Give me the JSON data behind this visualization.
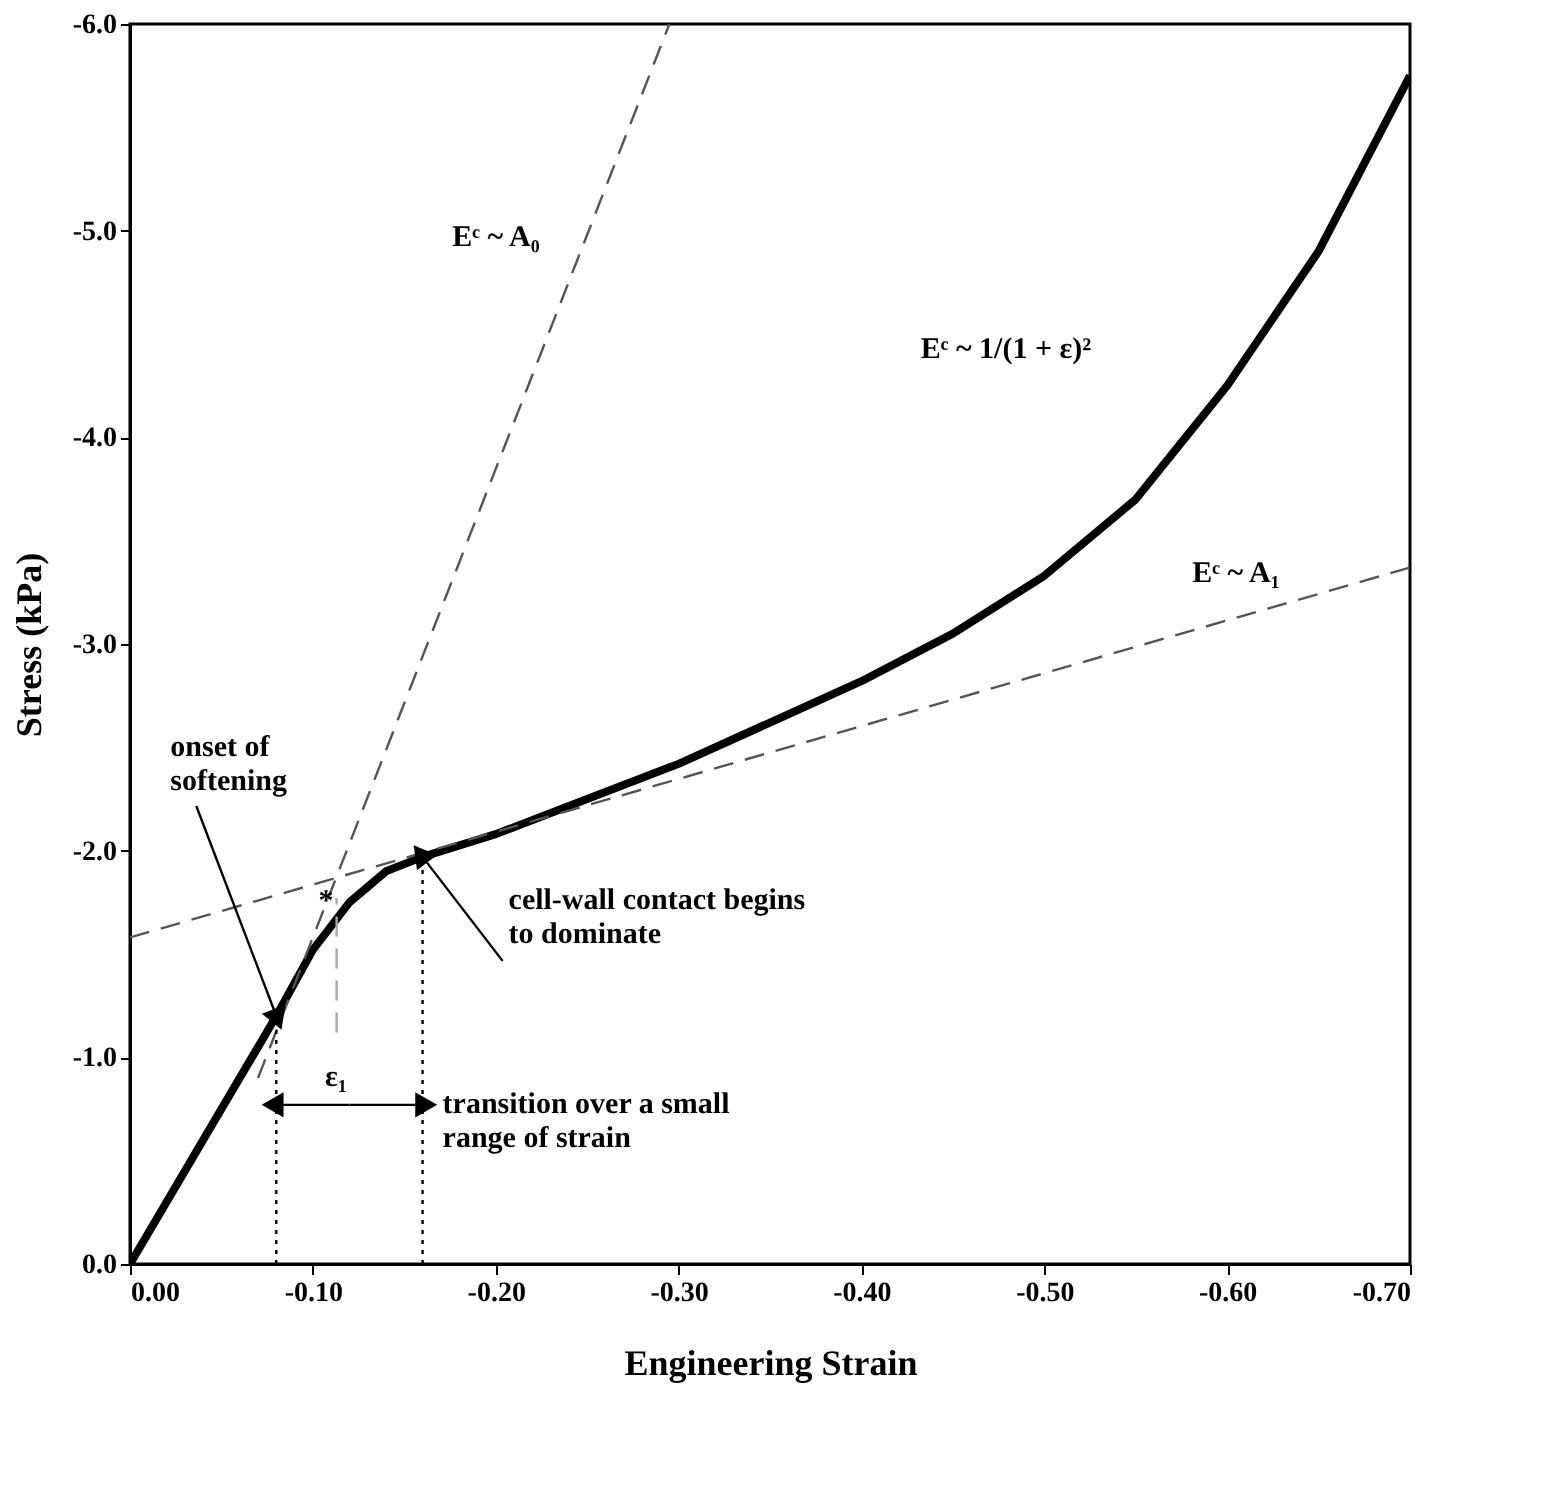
{
  "chart_data": {
    "type": "line",
    "xlabel": "Engineering Strain",
    "ylabel": "Stress (kPa)",
    "xlim": [
      0,
      -0.7
    ],
    "ylim": [
      0,
      -6.0
    ],
    "xticks": [
      {
        "value": 0,
        "label": "0.00"
      },
      {
        "value": -0.1,
        "label": "-0.10"
      },
      {
        "value": -0.2,
        "label": "-0.20"
      },
      {
        "value": -0.3,
        "label": "-0.30"
      },
      {
        "value": -0.4,
        "label": "-0.40"
      },
      {
        "value": -0.5,
        "label": "-0.50"
      },
      {
        "value": -0.6,
        "label": "-0.60"
      },
      {
        "value": -0.7,
        "label": "-0.70"
      }
    ],
    "yticks": [
      {
        "value": 0,
        "label": "0.0"
      },
      {
        "value": -1,
        "label": "-1.0"
      },
      {
        "value": -2,
        "label": "-2.0"
      },
      {
        "value": -3,
        "label": "-3.0"
      },
      {
        "value": -4,
        "label": "-4.0"
      },
      {
        "value": -5,
        "label": "-5.0"
      },
      {
        "value": -6,
        "label": "-6.0"
      }
    ],
    "grid": false,
    "marker": "none",
    "series": [
      {
        "color": "#000000",
        "line_style": "solid",
        "x": [
          0,
          -0.04,
          -0.08,
          -0.1,
          -0.12,
          -0.14,
          -0.16,
          -0.2,
          -0.25,
          -0.3,
          -0.35,
          -0.4,
          -0.45,
          -0.5,
          -0.55,
          -0.6,
          -0.65,
          -0.7
        ],
        "values": [
          0,
          -0.6,
          -1.2,
          -1.52,
          -1.75,
          -1.9,
          -1.97,
          -2.08,
          -2.25,
          -2.42,
          -2.62,
          -2.82,
          -3.05,
          -3.33,
          -3.7,
          -4.25,
          -4.9,
          -5.75
        ]
      },
      {
        "color": "#555555",
        "line_style": "dashed",
        "x": [
          -0.07,
          -0.295
        ],
        "values": [
          -0.9,
          -6.0
        ]
      },
      {
        "color": "#555555",
        "line_style": "dashed",
        "x": [
          0,
          -0.7
        ],
        "values": [
          -1.58,
          -3.37
        ]
      },
      {
        "color": "#000000",
        "line_style": "dotted",
        "x": [
          -0.08,
          -0.08
        ],
        "values": [
          0,
          -1.2
        ]
      },
      {
        "color": "#000000",
        "line_style": "dotted",
        "x": [
          -0.16,
          -0.16
        ],
        "values": [
          0,
          -1.97
        ]
      },
      {
        "color": "#aaaaaa",
        "line_style": "dashed",
        "x": [
          -0.113,
          -0.113
        ],
        "values": [
          -1.12,
          -1.77
        ]
      }
    ],
    "annotations": [
      {
        "text": "onset of\nsoftening",
        "x": -0.08,
        "y": -1.2
      },
      {
        "text": "cell-wall contact begins\nto dominate",
        "x": -0.16,
        "y": -1.97
      },
      {
        "text": "transition over a small\nrange of strain",
        "x": -0.16,
        "y": -0.77
      },
      "ε₁",
      {
        "text": "*",
        "x": -0.1116,
        "y": -1.84
      },
      "Eᶜ ~ A₀",
      "Eᶜ ~ 1/(1 + ε)²",
      "Eᶜ ~ A₁"
    ]
  }
}
